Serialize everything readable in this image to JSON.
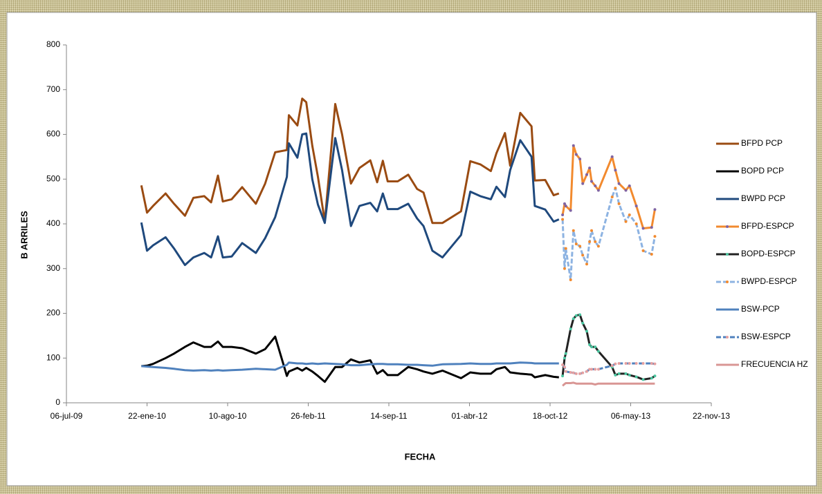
{
  "chart_data": {
    "type": "line",
    "x_label": "FECHA",
    "y_label": "B ARRILES",
    "xlim": [
      "2009-07-06",
      "2013-11-22"
    ],
    "xticks": [
      {
        "value": "2009-07-06",
        "label": "06-jul-09"
      },
      {
        "value": "2010-01-22",
        "label": "22-ene-10"
      },
      {
        "value": "2010-08-10",
        "label": "10-ago-10"
      },
      {
        "value": "2011-02-26",
        "label": "26-feb-11"
      },
      {
        "value": "2011-09-14",
        "label": "14-sep-11"
      },
      {
        "value": "2012-04-01",
        "label": "01-abr-12"
      },
      {
        "value": "2012-10-18",
        "label": "18-oct-12"
      },
      {
        "value": "2013-05-06",
        "label": "06-may-13"
      },
      {
        "value": "2013-11-22",
        "label": "22-nov-13"
      }
    ],
    "ylim": [
      0,
      800
    ],
    "yticks": [
      0,
      100,
      200,
      300,
      400,
      500,
      600,
      700,
      800
    ],
    "grid": false,
    "legend": "right",
    "series": [
      {
        "name": "BFPD PCP",
        "color": "#9a4b12",
        "dash": false,
        "x": [
          "2010-01-08",
          "2010-01-22",
          "2010-02-06",
          "2010-03-09",
          "2010-03-30",
          "2010-04-26",
          "2010-05-17",
          "2010-06-13",
          "2010-06-30",
          "2010-07-17",
          "2010-07-29",
          "2010-08-20",
          "2010-09-15",
          "2010-10-19",
          "2010-11-11",
          "2010-12-06",
          "2011-01-04",
          "2011-01-09",
          "2011-01-30",
          "2011-02-11",
          "2011-02-21",
          "2011-03-08",
          "2011-03-22",
          "2011-04-08",
          "2011-05-04",
          "2011-05-21",
          "2011-06-12",
          "2011-07-03",
          "2011-07-30",
          "2011-08-16",
          "2011-08-30",
          "2011-09-11",
          "2011-10-06",
          "2011-11-01",
          "2011-11-23",
          "2011-12-09",
          "2011-12-31",
          "2012-01-25",
          "2012-03-11",
          "2012-04-03",
          "2012-04-28",
          "2012-05-24",
          "2012-06-07",
          "2012-06-28",
          "2012-07-11",
          "2012-08-05",
          "2012-09-02",
          "2012-09-10",
          "2012-10-06",
          "2012-10-27",
          "2012-11-09"
        ],
        "values": [
          486,
          425,
          440,
          468,
          445,
          418,
          458,
          462,
          448,
          508,
          450,
          455,
          482,
          445,
          490,
          560,
          565,
          643,
          620,
          680,
          672,
          575,
          505,
          405,
          668,
          600,
          490,
          525,
          542,
          493,
          541,
          495,
          495,
          510,
          478,
          470,
          402,
          402,
          428,
          540,
          533,
          518,
          558,
          603,
          530,
          648,
          618,
          497,
          498,
          464,
          468
        ]
      },
      {
        "name": "BOPD PCP",
        "color": "#000000",
        "dash": false,
        "x": [
          "2010-01-08",
          "2010-01-22",
          "2010-02-06",
          "2010-03-09",
          "2010-03-30",
          "2010-04-26",
          "2010-05-17",
          "2010-06-13",
          "2010-06-30",
          "2010-07-17",
          "2010-07-29",
          "2010-08-20",
          "2010-09-15",
          "2010-10-19",
          "2010-11-11",
          "2010-12-06",
          "2011-01-04",
          "2011-01-09",
          "2011-01-30",
          "2011-02-11",
          "2011-02-21",
          "2011-03-08",
          "2011-03-22",
          "2011-04-08",
          "2011-05-04",
          "2011-05-21",
          "2011-06-12",
          "2011-07-03",
          "2011-07-30",
          "2011-08-16",
          "2011-08-30",
          "2011-09-11",
          "2011-10-06",
          "2011-11-01",
          "2011-11-23",
          "2011-12-09",
          "2011-12-31",
          "2012-01-25",
          "2012-03-11",
          "2012-04-03",
          "2012-04-28",
          "2012-05-24",
          "2012-06-07",
          "2012-06-28",
          "2012-07-11",
          "2012-08-05",
          "2012-09-02",
          "2012-09-10",
          "2012-10-06",
          "2012-10-27",
          "2012-11-09"
        ],
        "values": [
          82,
          83,
          87,
          100,
          110,
          125,
          135,
          125,
          125,
          137,
          125,
          125,
          122,
          110,
          120,
          148,
          60,
          70,
          78,
          72,
          78,
          70,
          60,
          47,
          80,
          80,
          97,
          90,
          95,
          65,
          73,
          62,
          62,
          80,
          75,
          70,
          65,
          72,
          55,
          68,
          65,
          65,
          75,
          80,
          68,
          65,
          63,
          57,
          62,
          58,
          57
        ]
      },
      {
        "name": "BWPD PCP",
        "color": "#1f497d",
        "dash": false,
        "x": [
          "2010-01-08",
          "2010-01-22",
          "2010-02-06",
          "2010-03-09",
          "2010-03-30",
          "2010-04-26",
          "2010-05-17",
          "2010-06-13",
          "2010-06-30",
          "2010-07-17",
          "2010-07-29",
          "2010-08-20",
          "2010-09-15",
          "2010-10-19",
          "2010-11-11",
          "2010-12-06",
          "2011-01-04",
          "2011-01-09",
          "2011-01-30",
          "2011-02-11",
          "2011-02-21",
          "2011-03-08",
          "2011-03-22",
          "2011-04-08",
          "2011-05-04",
          "2011-05-21",
          "2011-06-12",
          "2011-07-03",
          "2011-07-30",
          "2011-08-16",
          "2011-08-30",
          "2011-09-11",
          "2011-10-06",
          "2011-11-01",
          "2011-11-23",
          "2011-12-09",
          "2011-12-31",
          "2012-01-25",
          "2012-03-11",
          "2012-04-03",
          "2012-04-28",
          "2012-05-24",
          "2012-06-07",
          "2012-06-28",
          "2012-07-11",
          "2012-08-05",
          "2012-09-02",
          "2012-09-10",
          "2012-10-06",
          "2012-10-27",
          "2012-11-09"
        ],
        "values": [
          403,
          340,
          352,
          370,
          345,
          308,
          325,
          335,
          325,
          372,
          325,
          327,
          357,
          335,
          368,
          415,
          505,
          580,
          548,
          600,
          602,
          500,
          443,
          402,
          592,
          520,
          395,
          440,
          447,
          428,
          468,
          433,
          433,
          445,
          412,
          395,
          340,
          325,
          375,
          472,
          462,
          455,
          483,
          460,
          520,
          587,
          550,
          440,
          432,
          405,
          410
        ]
      },
      {
        "name": "BFPD-ESPCP",
        "color": "#f28a2e",
        "dash": false,
        "marker_color": "#8064a2",
        "x": [
          "2012-11-18",
          "2012-11-23",
          "2012-11-26",
          "2012-12-08",
          "2012-12-15",
          "2012-12-22",
          "2012-12-31",
          "2013-01-07",
          "2013-01-17",
          "2013-01-24",
          "2013-01-29",
          "2013-02-07",
          "2013-02-15",
          "2013-03-21",
          "2013-03-29",
          "2013-04-07",
          "2013-04-24",
          "2013-05-03",
          "2013-05-20",
          "2013-06-06",
          "2013-06-27",
          "2013-07-05"
        ],
        "values": [
          420,
          445,
          440,
          430,
          575,
          555,
          545,
          490,
          510,
          525,
          495,
          485,
          475,
          550,
          520,
          490,
          475,
          485,
          440,
          390,
          392,
          432
        ]
      },
      {
        "name": "BOPD-ESPCP",
        "color": "#222222",
        "dash": false,
        "marker_color": "#4bc6a0",
        "x": [
          "2012-11-18",
          "2012-11-23",
          "2012-11-26",
          "2012-12-08",
          "2012-12-15",
          "2012-12-22",
          "2012-12-31",
          "2013-01-07",
          "2013-01-17",
          "2013-01-24",
          "2013-01-29",
          "2013-02-07",
          "2013-02-15",
          "2013-03-21",
          "2013-03-29",
          "2013-04-07",
          "2013-04-24",
          "2013-05-03",
          "2013-05-20",
          "2013-06-06",
          "2013-06-27",
          "2013-07-05"
        ],
        "values": [
          60,
          100,
          110,
          165,
          188,
          195,
          197,
          178,
          160,
          130,
          125,
          125,
          115,
          80,
          62,
          65,
          65,
          62,
          58,
          52,
          55,
          60
        ]
      },
      {
        "name": "BWPD-ESPCP",
        "color": "#8db3e2",
        "dash": true,
        "marker_color": "#f28a2e",
        "x": [
          "2012-11-18",
          "2012-11-23",
          "2012-11-26",
          "2012-12-08",
          "2012-12-15",
          "2012-12-22",
          "2012-12-31",
          "2013-01-07",
          "2013-01-17",
          "2013-01-24",
          "2013-01-29",
          "2013-02-07",
          "2013-02-15",
          "2013-03-21",
          "2013-03-29",
          "2013-04-07",
          "2013-04-24",
          "2013-05-03",
          "2013-05-20",
          "2013-06-06",
          "2013-06-27",
          "2013-07-05"
        ],
        "values": [
          410,
          300,
          345,
          275,
          385,
          355,
          350,
          330,
          310,
          360,
          385,
          360,
          350,
          460,
          480,
          445,
          405,
          420,
          400,
          340,
          332,
          372
        ]
      },
      {
        "name": "BSW-PCP",
        "color": "#4f81bd",
        "dash": false,
        "x": [
          "2010-01-08",
          "2010-01-22",
          "2010-02-06",
          "2010-03-09",
          "2010-03-30",
          "2010-04-26",
          "2010-05-17",
          "2010-06-13",
          "2010-06-30",
          "2010-07-17",
          "2010-07-29",
          "2010-08-20",
          "2010-09-15",
          "2010-10-19",
          "2010-11-11",
          "2010-12-06",
          "2011-01-04",
          "2011-01-09",
          "2011-01-30",
          "2011-02-11",
          "2011-02-21",
          "2011-03-08",
          "2011-03-22",
          "2011-04-08",
          "2011-05-04",
          "2011-05-21",
          "2011-06-12",
          "2011-07-03",
          "2011-07-30",
          "2011-08-16",
          "2011-08-30",
          "2011-09-11",
          "2011-10-06",
          "2011-11-01",
          "2011-11-23",
          "2011-12-09",
          "2011-12-31",
          "2012-01-25",
          "2012-03-11",
          "2012-04-03",
          "2012-04-28",
          "2012-05-24",
          "2012-06-07",
          "2012-06-28",
          "2012-07-11",
          "2012-08-05",
          "2012-09-02",
          "2012-09-10",
          "2012-10-06",
          "2012-10-27",
          "2012-11-09"
        ],
        "values": [
          82,
          81,
          80,
          78,
          76,
          73,
          72,
          73,
          72,
          73,
          72,
          73,
          74,
          76,
          75,
          74,
          85,
          90,
          88,
          88,
          87,
          88,
          87,
          88,
          87,
          86,
          84,
          84,
          86,
          87,
          87,
          86,
          86,
          85,
          85,
          84,
          83,
          86,
          87,
          88,
          87,
          87,
          88,
          88,
          88,
          90,
          89,
          88,
          88,
          88,
          88
        ]
      },
      {
        "name": "BSW-ESPCP",
        "color": "#4f81bd",
        "dash": true,
        "marker_color": "#e6a0a0",
        "x": [
          "2012-11-18",
          "2012-11-23",
          "2012-11-26",
          "2012-12-08",
          "2012-12-15",
          "2012-12-22",
          "2012-12-31",
          "2013-01-07",
          "2013-01-17",
          "2013-01-24",
          "2013-01-29",
          "2013-02-07",
          "2013-02-15",
          "2013-03-21",
          "2013-03-29",
          "2013-04-07",
          "2013-04-24",
          "2013-05-03",
          "2013-05-20",
          "2013-06-06",
          "2013-06-27",
          "2013-07-05"
        ],
        "values": [
          85,
          80,
          70,
          68,
          67,
          65,
          65,
          67,
          70,
          75,
          75,
          75,
          75,
          83,
          87,
          88,
          88,
          88,
          88,
          88,
          88,
          87
        ]
      },
      {
        "name": "FRECUENCIA HZ",
        "color": "#d99694",
        "dash": false,
        "x": [
          "2012-11-18",
          "2012-11-23",
          "2012-11-26",
          "2012-12-08",
          "2012-12-15",
          "2012-12-22",
          "2012-12-31",
          "2013-01-07",
          "2013-01-17",
          "2013-01-24",
          "2013-01-29",
          "2013-02-07",
          "2013-02-15",
          "2013-03-21",
          "2013-03-29",
          "2013-04-07",
          "2013-04-24",
          "2013-05-03",
          "2013-05-20",
          "2013-06-06",
          "2013-06-27",
          "2013-07-05"
        ],
        "values": [
          38,
          42,
          44,
          44,
          45,
          43,
          43,
          43,
          43,
          43,
          43,
          41,
          43,
          43,
          43,
          43,
          43,
          43,
          43,
          43,
          43,
          43
        ]
      }
    ]
  }
}
